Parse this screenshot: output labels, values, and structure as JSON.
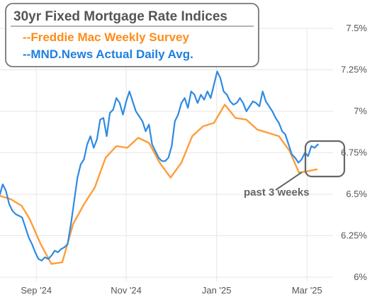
{
  "chart_data": {
    "type": "line",
    "title": "30yr Fixed Mortgage Rate Indices",
    "xlabel": "",
    "ylabel": "",
    "ylim": [
      6.0,
      7.5
    ],
    "grid": true,
    "legend_position": "top-left",
    "y_ticks": [
      "7.5%",
      "7.25%",
      "7%",
      "6.75%",
      "6.5%",
      "6.25%",
      "6%"
    ],
    "y_tick_values": [
      7.5,
      7.25,
      7.0,
      6.75,
      6.5,
      6.25,
      6.0
    ],
    "x_ticks": [
      "Sep '24",
      "Nov '24",
      "Jan '25",
      "Mar '25"
    ],
    "x_tick_positions": [
      2024.667,
      2024.833,
      2025.0,
      2025.167
    ],
    "xlim": [
      2024.6,
      2025.215
    ],
    "series": [
      {
        "name": "--Freddie Mac Weekly Survey",
        "color": "#ff9d3a",
        "x": [
          2024.6,
          2024.62,
          2024.64,
          2024.655,
          2024.675,
          2024.695,
          2024.715,
          2024.735,
          2024.755,
          2024.775,
          2024.795,
          2024.815,
          2024.835,
          2024.855,
          2024.875,
          2024.895,
          2024.915,
          2024.935,
          2024.955,
          2024.975,
          2024.995,
          2025.015,
          2025.035,
          2025.055,
          2025.075,
          2025.095,
          2025.115,
          2025.135,
          2025.152,
          2025.17,
          2025.185
        ],
        "values": [
          6.49,
          6.47,
          6.43,
          6.35,
          6.2,
          6.08,
          6.09,
          6.32,
          6.44,
          6.54,
          6.72,
          6.79,
          6.78,
          6.84,
          6.81,
          6.69,
          6.6,
          6.69,
          6.85,
          6.91,
          6.93,
          7.04,
          6.96,
          6.95,
          6.89,
          6.87,
          6.85,
          6.76,
          6.63,
          6.64,
          6.65
        ]
      },
      {
        "name": "--MND.News Actual Daily Avg.",
        "color": "#2f8ae3",
        "x": [
          2024.6,
          2024.605,
          2024.611,
          2024.617,
          2024.623,
          2024.629,
          2024.635,
          2024.641,
          2024.647,
          2024.653,
          2024.659,
          2024.665,
          2024.671,
          2024.677,
          2024.683,
          2024.689,
          2024.695,
          2024.701,
          2024.707,
          2024.713,
          2024.719,
          2024.725,
          2024.731,
          2024.737,
          2024.743,
          2024.749,
          2024.755,
          2024.761,
          2024.767,
          2024.773,
          2024.779,
          2024.785,
          2024.791,
          2024.797,
          2024.803,
          2024.809,
          2024.815,
          2024.821,
          2024.827,
          2024.833,
          2024.839,
          2024.845,
          2024.851,
          2024.857,
          2024.863,
          2024.869,
          2024.875,
          2024.881,
          2024.887,
          2024.893,
          2024.899,
          2024.905,
          2024.911,
          2024.917,
          2024.923,
          2024.929,
          2024.935,
          2024.941,
          2024.947,
          2024.953,
          2024.959,
          2024.965,
          2024.971,
          2024.977,
          2024.983,
          2024.989,
          2024.995,
          2025.001,
          2025.007,
          2025.013,
          2025.019,
          2025.025,
          2025.031,
          2025.037,
          2025.043,
          2025.049,
          2025.055,
          2025.061,
          2025.067,
          2025.073,
          2025.079,
          2025.085,
          2025.091,
          2025.097,
          2025.103,
          2025.109,
          2025.115,
          2025.121,
          2025.127,
          2025.133,
          2025.139,
          2025.145,
          2025.151,
          2025.157,
          2025.163,
          2025.169,
          2025.175,
          2025.181,
          2025.187
        ],
        "values": [
          6.5,
          6.56,
          6.52,
          6.44,
          6.4,
          6.38,
          6.37,
          6.36,
          6.3,
          6.24,
          6.2,
          6.15,
          6.11,
          6.1,
          6.12,
          6.11,
          6.13,
          6.16,
          6.15,
          6.17,
          6.18,
          6.2,
          6.32,
          6.46,
          6.6,
          6.68,
          6.71,
          6.8,
          6.85,
          6.78,
          6.83,
          6.95,
          6.96,
          6.85,
          6.99,
          7.01,
          7.08,
          7.05,
          6.98,
          7.06,
          7.12,
          7.06,
          7.0,
          6.97,
          6.94,
          6.88,
          6.92,
          6.8,
          6.76,
          6.72,
          6.7,
          6.7,
          6.72,
          6.79,
          6.94,
          6.98,
          7.05,
          7.08,
          7.02,
          7.12,
          7.1,
          7.05,
          7.1,
          7.07,
          7.12,
          7.08,
          7.16,
          7.24,
          7.2,
          7.12,
          7.1,
          7.06,
          7.04,
          7.05,
          7.08,
          7.05,
          7.0,
          7.03,
          7.06,
          7.05,
          7.03,
          7.12,
          7.06,
          7.03,
          7.0,
          6.96,
          6.93,
          6.88,
          6.86,
          6.8,
          6.74,
          6.72,
          6.69,
          6.71,
          6.75,
          6.73,
          6.79,
          6.78,
          6.8
        ]
      }
    ],
    "annotations": [
      {
        "text": "past 3 weeks"
      }
    ]
  }
}
